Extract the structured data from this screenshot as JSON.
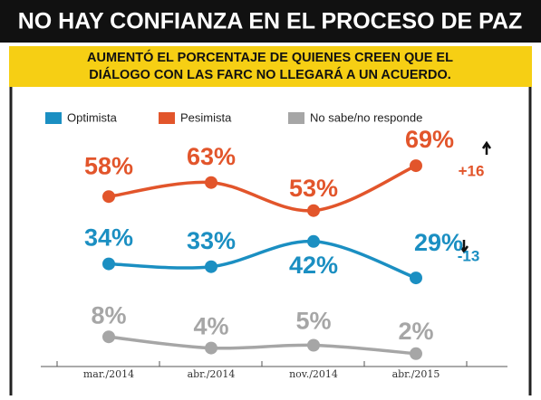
{
  "chart_data": {
    "type": "line",
    "title": "NO HAY CONFIANZA EN EL PROCESO DE PAZ",
    "subtitle": [
      "AUMENTÓ EL PORCENTAJE DE QUIENES CREEN QUE EL",
      "DIÁLOGO CON LAS FARC NO LLEGARÁ A UN ACUERDO."
    ],
    "categories": [
      "mar./2014",
      "abr./2014",
      "nov./2014",
      "abr./2015"
    ],
    "series": [
      {
        "name": "Optimista",
        "color": "#1b8fc2",
        "values": [
          34,
          33,
          42,
          29
        ],
        "value_labels": [
          "34%",
          "33%",
          "42%",
          "29%"
        ],
        "change": "-13"
      },
      {
        "name": "Pesimista",
        "color": "#e2552b",
        "values": [
          58,
          63,
          53,
          69
        ],
        "value_labels": [
          "58%",
          "63%",
          "53%",
          "69%"
        ],
        "change": "+16"
      },
      {
        "name": "No sabe/no responde",
        "color": "#a6a6a6",
        "values": [
          8,
          4,
          5,
          2
        ],
        "value_labels": [
          "8%",
          "4%",
          "5%",
          "2%"
        ]
      }
    ]
  }
}
